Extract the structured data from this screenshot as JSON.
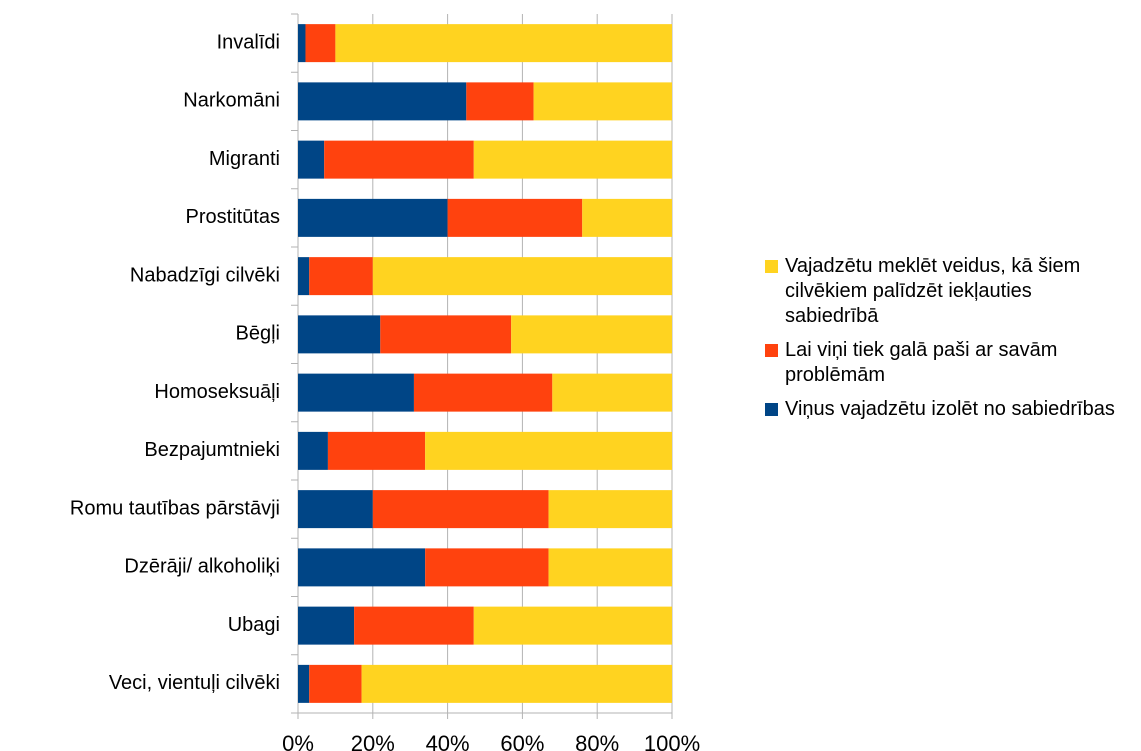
{
  "chart_data": {
    "type": "stacked_barh",
    "categories": [
      "Invalīdi",
      "Narkomāni",
      "Migranti",
      "Prostitūtas",
      "Nabadzīgi cilvēki",
      "Bēgļi",
      "Homoseksuāļi",
      "Bezpajumtnieki",
      "Romu tautības pārstāvji",
      "Dzērāji/ alkoholiķi",
      "Ubagi",
      "Veci, vientuļi cilvēki"
    ],
    "series": [
      {
        "name": "Viņus vajadzētu izolēt no sabiedrības",
        "color": "#004586",
        "values": [
          2,
          45,
          7,
          40,
          3,
          22,
          31,
          8,
          20,
          34,
          15,
          3
        ]
      },
      {
        "name": "Lai viņi tiek galā paši ar savām problēmām",
        "color": "#ff420e",
        "values": [
          8,
          18,
          40,
          36,
          17,
          35,
          37,
          26,
          47,
          33,
          32,
          14
        ]
      },
      {
        "name": "Vajadzētu meklēt veidus, kā šiem cilvēkiem palīdzēt iekļauties sabiedrībā",
        "color": "#ffd320",
        "values": [
          90,
          37,
          53,
          24,
          80,
          43,
          32,
          66,
          33,
          33,
          53,
          83
        ]
      }
    ],
    "xlim": [
      0,
      100
    ],
    "xticks": [
      {
        "value": 0,
        "label": "0%"
      },
      {
        "value": 20,
        "label": "20%"
      },
      {
        "value": 40,
        "label": "40%"
      },
      {
        "value": 60,
        "label": "60%"
      },
      {
        "value": 80,
        "label": "80%"
      },
      {
        "value": 100,
        "label": "100%"
      }
    ],
    "grid": true,
    "legend": "right"
  }
}
